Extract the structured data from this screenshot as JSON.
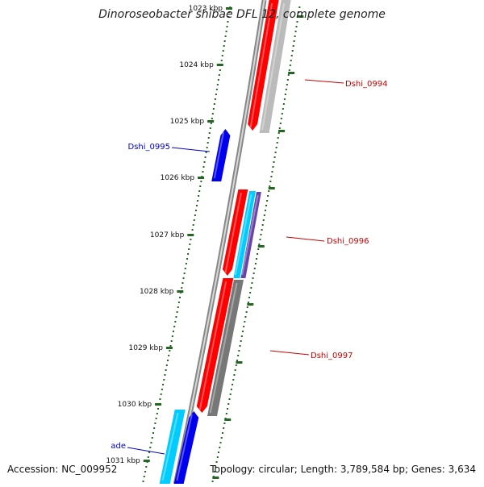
{
  "title": "Dinoroseobacter shibae DFL 12, complete genome",
  "accession": "Accession: NC_009952",
  "summary": "Topology: circular; Length: 3,789,584 bp; Genes: 3,634",
  "ticks": [
    {
      "label": "1023 kbp"
    },
    {
      "label": "1024 kbp"
    },
    {
      "label": "1025 kbp"
    },
    {
      "label": "1026 kbp"
    },
    {
      "label": "1027 kbp"
    },
    {
      "label": "1028 kbp"
    },
    {
      "label": "1029 kbp"
    },
    {
      "label": "1030 kbp"
    },
    {
      "label": "1031 kbp"
    }
  ],
  "genes": [
    {
      "name": "Dshi_0994",
      "strand": "+",
      "color": "#cc0000"
    },
    {
      "name": "Dshi_0995",
      "strand": "-",
      "color": "#0000cc"
    },
    {
      "name": "Dshi_0996",
      "strand": "+",
      "color": "#cc0000"
    },
    {
      "name": "Dshi_0997",
      "strand": "+",
      "color": "#cc0000"
    },
    {
      "name": "ade",
      "strand": "-",
      "color": "#0000cc"
    }
  ],
  "colors": {
    "cds": "#ff0000",
    "gene_minus": "#0000ee",
    "cyan_feature": "#00ccff",
    "purple_feature": "#6644aa",
    "gray_feature": "#777777",
    "light_gray_feature": "#bbbbbb",
    "backbone": "#888888",
    "tick_green": "#226622",
    "tick_label": "#111111"
  }
}
